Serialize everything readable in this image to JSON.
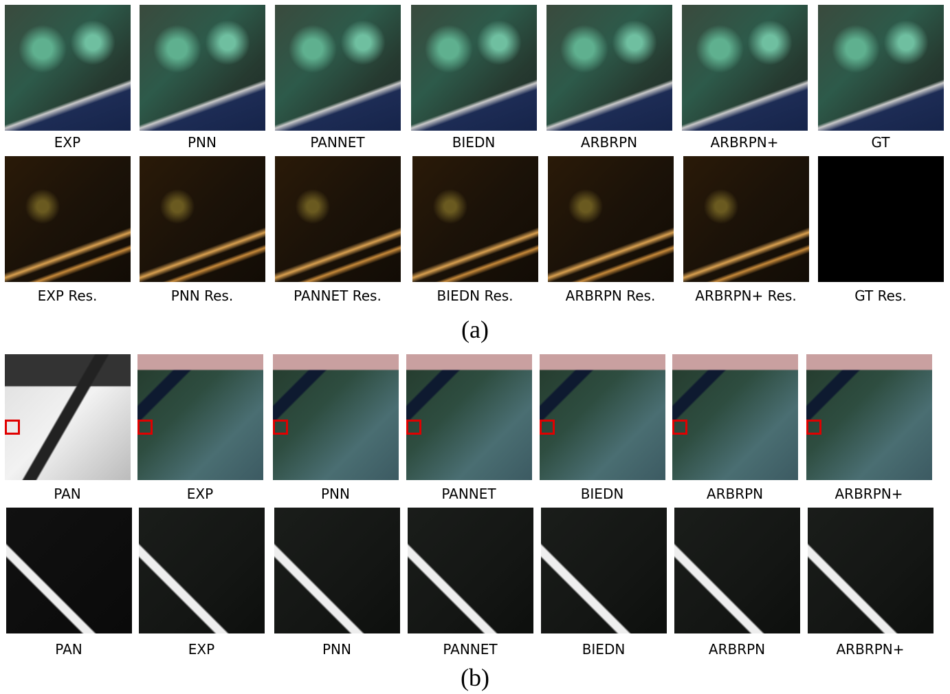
{
  "panel_a": {
    "rows": [
      {
        "labels": [
          "EXP",
          "PNN",
          "PANNET",
          "BIEDN",
          "ARBRPN",
          "ARBRPN+",
          "GT"
        ]
      },
      {
        "labels": [
          "EXP Res.",
          "PNN Res.",
          "PANNET Res.",
          "BIEDN Res.",
          "ARBRPN Res.",
          "ARBRPN+ Res.",
          "GT Res."
        ]
      }
    ],
    "caption": "(a)"
  },
  "panel_b": {
    "rows": [
      {
        "labels": [
          "PAN",
          "EXP",
          "PNN",
          "PANNET",
          "BIEDN",
          "ARBRPN",
          "ARBRPN+"
        ]
      },
      {
        "labels": [
          "PAN",
          "EXP",
          "PNN",
          "PANNET",
          "BIEDN",
          "ARBRPN",
          "ARBRPN+"
        ]
      }
    ],
    "caption": "(b)"
  }
}
